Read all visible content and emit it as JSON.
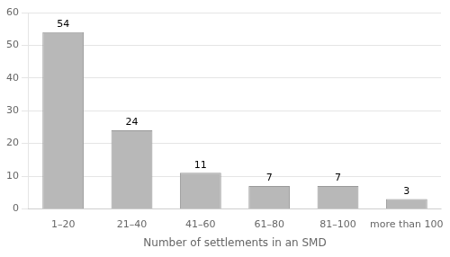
{
  "chart_data": {
    "type": "bar",
    "categories": [
      "1–20",
      "21–40",
      "41–60",
      "61–80",
      "81–100",
      "more than 100"
    ],
    "values": [
      54,
      24,
      11,
      7,
      7,
      3
    ],
    "color": "#b8b8b8",
    "xlabel": "Number of settlements in an SMD",
    "ylim": [
      0,
      60
    ],
    "yticks": [
      0,
      10,
      20,
      30,
      40,
      50,
      60
    ],
    "grid": true,
    "data_labels": true
  }
}
